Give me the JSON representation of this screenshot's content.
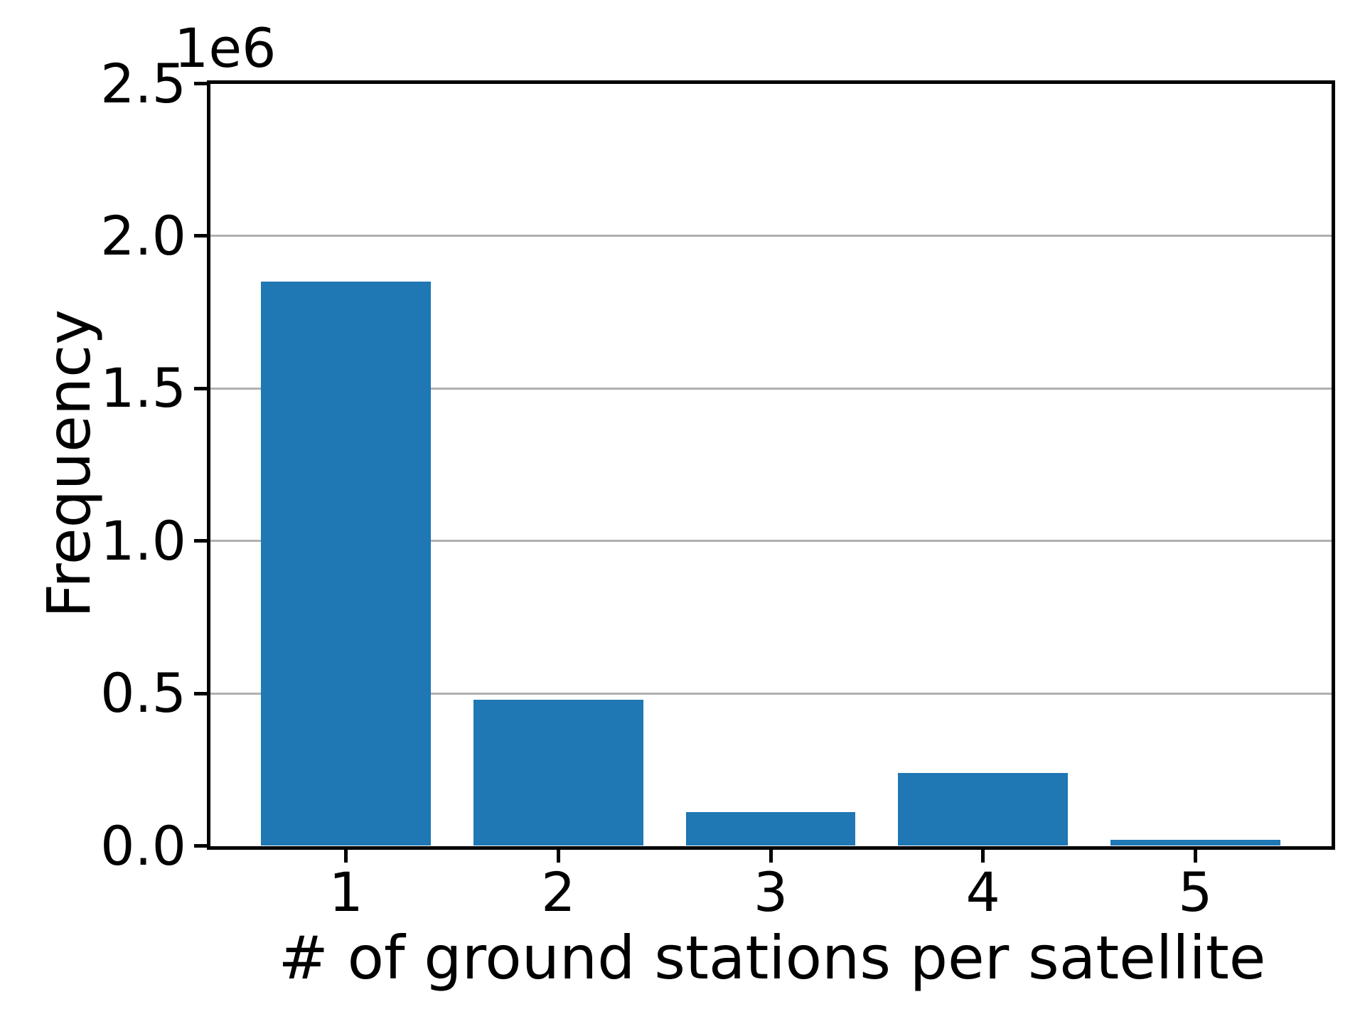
{
  "figure": {
    "ylabel": "Frequency",
    "xlabel": "# of ground stations per satellite",
    "offset_text": "1e6"
  },
  "chart_data": {
    "type": "bar",
    "categories": [
      "1",
      "2",
      "3",
      "4",
      "5"
    ],
    "values": [
      1850000,
      480000,
      110000,
      240000,
      20000
    ],
    "title": "",
    "xlabel": "# of ground stations per satellite",
    "ylabel": "Frequency",
    "ylim": [
      0,
      2500000
    ],
    "xlim": [
      0.36,
      5.64
    ],
    "bar_width": 0.8,
    "yticks": [
      0,
      500000,
      1000000,
      1500000,
      2000000,
      2500000
    ],
    "ytick_labels": [
      "0.0",
      "0.5",
      "1.0",
      "1.5",
      "2.0",
      "2.5"
    ],
    "offset_text": "1e6",
    "grid": "y",
    "legend": "none",
    "colors": {
      "bar": "#1f77b4",
      "grid": "#b0b0b0",
      "spine": "#000000",
      "text": "#000000"
    }
  }
}
